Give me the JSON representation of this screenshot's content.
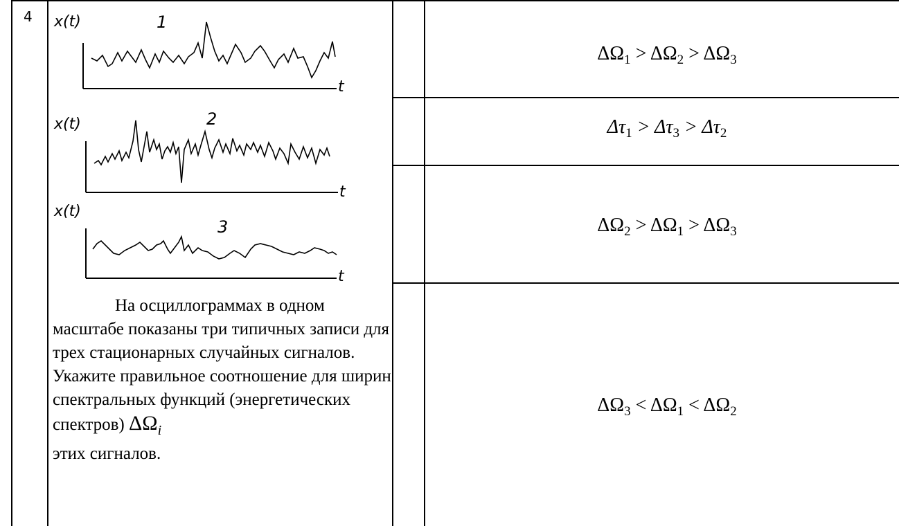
{
  "row_number": "4",
  "oscillograms": [
    {
      "axis_y_label": "x(t)",
      "number": "1",
      "axis_x_label": "t"
    },
    {
      "axis_y_label": "x(t)",
      "number": "2",
      "axis_x_label": "t"
    },
    {
      "axis_y_label": "x(t)",
      "number": "3",
      "axis_x_label": "t"
    }
  ],
  "question": {
    "text": "На осциллограммах в одном масштабе показаны три типичных записи для трех стационарных случайных сигналов. Укажите правильное соотношение для ширин спектральных функций (энергетических спектров)",
    "symbol": "ΔΩ",
    "symbol_sub": "i",
    "ending": "этих сигналов."
  },
  "answers": [
    {
      "parts": [
        "ΔΩ",
        "1",
        " > ΔΩ",
        "2",
        " > ΔΩ",
        "3"
      ]
    },
    {
      "parts": [
        "Δτ",
        "1",
        " > Δτ",
        "3",
        " > Δτ",
        "2"
      ]
    },
    {
      "parts": [
        "ΔΩ",
        "2",
        " > ΔΩ",
        "1",
        " > ΔΩ",
        "3"
      ]
    },
    {
      "parts": [
        "ΔΩ",
        "3",
        " < ΔΩ",
        "1",
        " < ΔΩ",
        "2"
      ]
    }
  ]
}
